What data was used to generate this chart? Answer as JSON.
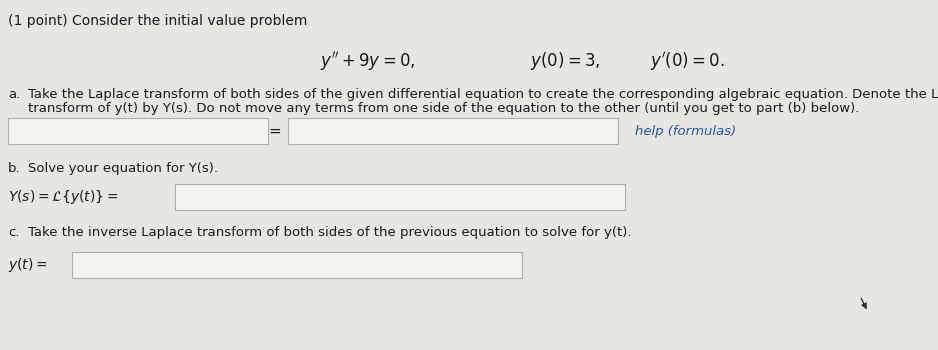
{
  "background_color": "#e8e6e3",
  "text_color": "#1a1a1a",
  "input_box_color": "#f5f3f0",
  "input_box_border": "#b0aeab",
  "help_color": "#2255aa",
  "title_text": "(1 point) Consider the initial value problem",
  "part_a_label": "a.",
  "part_a_text1": "Take the Laplace transform of both sides of the given differential equation to create the corresponding algebraic equation. Denote the Laplace",
  "part_a_text2": "transform of y(t) by Y(s). Do not move any terms from one side of the equation to the other (until you get to part (b) below).",
  "help_text": "help (formulas)",
  "part_b_label": "b.",
  "part_b_text": "Solve your equation for Y(s).",
  "part_c_label": "c.",
  "part_c_text": "Take the inverse Laplace transform of both sides of the previous equation to solve for y(t).",
  "fs_title": 10,
  "fs_body": 9.5,
  "fs_eq": 12,
  "fs_small": 9
}
